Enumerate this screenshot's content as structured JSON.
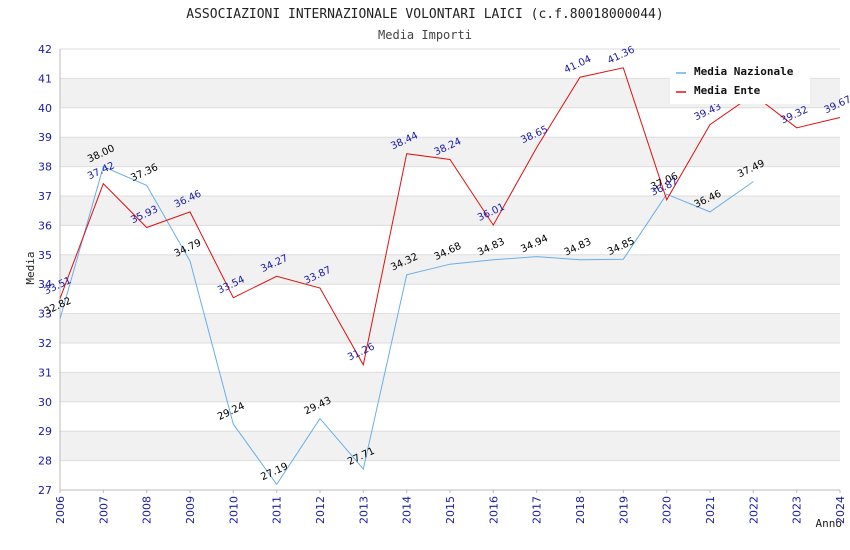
{
  "chart_data": {
    "type": "line",
    "title": "ASSOCIAZIONI INTERNAZIONALE VOLONTARI LAICI (c.f.80018000044)",
    "subtitle": "Media Importi",
    "ylabel": "Media",
    "xlabel": "Anno",
    "ylim": [
      27,
      42
    ],
    "yticks": [
      "27",
      "28",
      "29",
      "30",
      "31",
      "32",
      "33",
      "34",
      "35",
      "36",
      "37",
      "38",
      "39",
      "40",
      "41",
      "42"
    ],
    "categories": [
      "2006",
      "2007",
      "2008",
      "2009",
      "2010",
      "2011",
      "2012",
      "2013",
      "2014",
      "2015",
      "2016",
      "2017",
      "2018",
      "2019",
      "2020",
      "2021",
      "2022",
      "2023",
      "2024"
    ],
    "series": [
      {
        "name": "Media Nazionale",
        "color": "#6aaee8",
        "label_color": "#000000",
        "values": [
          32.82,
          38.0,
          37.36,
          34.79,
          29.24,
          27.19,
          29.43,
          27.71,
          34.32,
          34.68,
          34.83,
          34.94,
          34.83,
          34.85,
          37.06,
          36.46,
          37.49,
          null,
          null
        ],
        "labels": [
          "32.82",
          "38.00",
          "37.36",
          "34.79",
          "29.24",
          "27.19",
          "29.43",
          "27.71",
          "34.32",
          "34.68",
          "34.83",
          "34.94",
          "34.83",
          "34.85",
          "37.06",
          "36.46",
          "37.49",
          "",
          ""
        ]
      },
      {
        "name": "Media Ente",
        "color": "#e01010",
        "label_color": "#1a1aa6",
        "values": [
          33.51,
          37.42,
          35.93,
          36.46,
          33.54,
          34.27,
          33.87,
          31.26,
          38.44,
          38.24,
          36.01,
          38.65,
          41.04,
          41.36,
          36.87,
          39.43,
          40.45,
          39.32,
          39.67
        ],
        "labels": [
          "33.51",
          "37.42",
          "35.93",
          "36.46",
          "33.54",
          "34.27",
          "33.87",
          "31.26",
          "38.44",
          "38.24",
          "36.01",
          "38.65",
          "41.04",
          "41.36",
          "36.87",
          "39.43",
          "",
          "39.32",
          "39.67"
        ]
      }
    ],
    "grid": true,
    "legend": "top-right"
  }
}
